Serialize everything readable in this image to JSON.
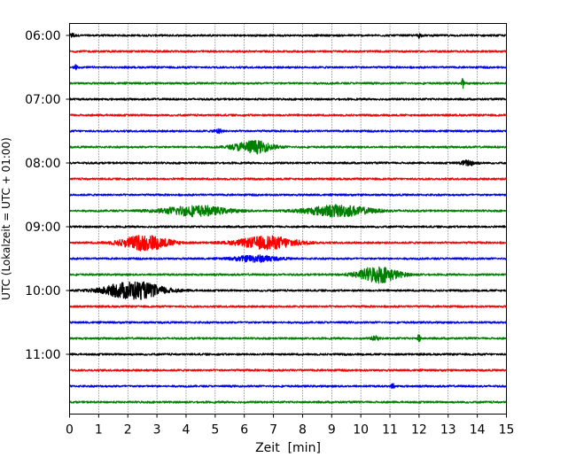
{
  "chart_data": {
    "type": "line",
    "title": "",
    "xlabel": "Zeit  [min]",
    "ylabel": "UTC (Lokalzeit = UTC + 01:00)",
    "xlim": [
      0,
      15
    ],
    "x_ticks": [
      0,
      1,
      2,
      3,
      4,
      5,
      6,
      7,
      8,
      9,
      10,
      11,
      12,
      13,
      14,
      15
    ],
    "x_tick_labels": [
      "0",
      "1",
      "2",
      "3",
      "4",
      "5",
      "6",
      "7",
      "8",
      "9",
      "10",
      "11",
      "12",
      "13",
      "14",
      "15"
    ],
    "y_ticks": [
      "06:00",
      "07:00",
      "08:00",
      "09:00",
      "10:00",
      "11:00"
    ],
    "grid": "vertical dotted",
    "color_cycle": [
      "#000000",
      "#ff0000",
      "#0000ff",
      "#008000"
    ],
    "trace_interval_minutes": 15,
    "traces": [
      {
        "start": "06:00",
        "color": "#000000",
        "events": [
          {
            "t": 0.1,
            "amp": 0.35,
            "dur": 0.2
          },
          {
            "t": 12,
            "amp": 0.35,
            "dur": 0.15
          }
        ]
      },
      {
        "start": "06:15",
        "color": "#ff0000",
        "events": []
      },
      {
        "start": "06:30",
        "color": "#0000ff",
        "events": [
          {
            "t": 0.2,
            "amp": 0.3,
            "dur": 0.2
          }
        ]
      },
      {
        "start": "06:45",
        "color": "#008000",
        "events": [
          {
            "t": 13.5,
            "amp": 0.7,
            "dur": 0.1
          }
        ]
      },
      {
        "start": "07:00",
        "color": "#000000",
        "events": []
      },
      {
        "start": "07:15",
        "color": "#ff0000",
        "events": []
      },
      {
        "start": "07:30",
        "color": "#0000ff",
        "events": [
          {
            "t": 5.1,
            "amp": 0.35,
            "dur": 0.3
          }
        ]
      },
      {
        "start": "07:45",
        "color": "#008000",
        "events": [
          {
            "t": 6.3,
            "amp": 1.0,
            "dur": 1.4
          }
        ]
      },
      {
        "start": "08:00",
        "color": "#000000",
        "events": [
          {
            "t": 13.7,
            "amp": 0.4,
            "dur": 0.6
          }
        ]
      },
      {
        "start": "08:15",
        "color": "#ff0000",
        "events": []
      },
      {
        "start": "08:30",
        "color": "#0000ff",
        "events": []
      },
      {
        "start": "08:45",
        "color": "#008000",
        "events": [
          {
            "t": 4.3,
            "amp": 0.8,
            "dur": 2.4
          },
          {
            "t": 9.2,
            "amp": 0.9,
            "dur": 2.4
          }
        ]
      },
      {
        "start": "09:00",
        "color": "#000000",
        "events": []
      },
      {
        "start": "09:15",
        "color": "#ff0000",
        "events": [
          {
            "t": 2.6,
            "amp": 1.2,
            "dur": 1.8
          },
          {
            "t": 6.8,
            "amp": 1.0,
            "dur": 2.2
          }
        ]
      },
      {
        "start": "09:30",
        "color": "#0000ff",
        "events": [
          {
            "t": 6.4,
            "amp": 0.5,
            "dur": 1.6
          }
        ]
      },
      {
        "start": "09:45",
        "color": "#008000",
        "events": [
          {
            "t": 10.6,
            "amp": 1.3,
            "dur": 1.5
          }
        ]
      },
      {
        "start": "10:00",
        "color": "#000000",
        "events": [
          {
            "t": 2.2,
            "amp": 1.4,
            "dur": 2.2
          }
        ]
      },
      {
        "start": "10:15",
        "color": "#ff0000",
        "events": []
      },
      {
        "start": "10:30",
        "color": "#0000ff",
        "events": []
      },
      {
        "start": "10:45",
        "color": "#008000",
        "events": [
          {
            "t": 10.5,
            "amp": 0.3,
            "dur": 0.3
          },
          {
            "t": 12,
            "amp": 0.7,
            "dur": 0.1
          }
        ]
      },
      {
        "start": "11:00",
        "color": "#000000",
        "events": []
      },
      {
        "start": "11:15",
        "color": "#ff0000",
        "events": []
      },
      {
        "start": "11:30",
        "color": "#0000ff",
        "events": [
          {
            "t": 11.1,
            "amp": 0.45,
            "dur": 0.12
          }
        ]
      },
      {
        "start": "11:45",
        "color": "#008000",
        "events": []
      }
    ]
  }
}
